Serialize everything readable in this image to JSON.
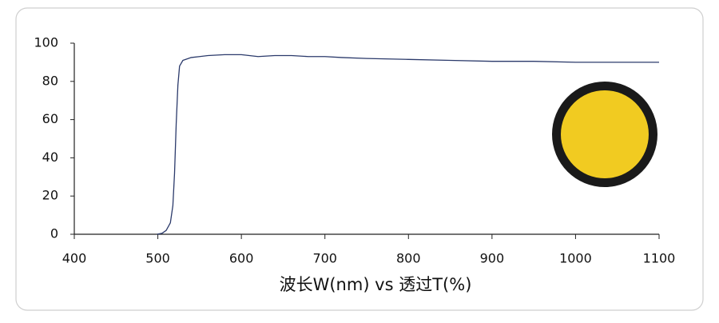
{
  "chart_data": {
    "type": "line",
    "xlabel": "波长W(nm) vs 透过T(%)",
    "x": [
      499,
      505,
      510,
      515,
      518,
      520,
      522,
      524,
      526,
      530,
      540,
      550,
      560,
      580,
      600,
      620,
      640,
      660,
      680,
      700,
      720,
      750,
      800,
      850,
      900,
      950,
      1000,
      1050,
      1100
    ],
    "series": [
      {
        "color": "#2b3a6b",
        "values": [
          0,
          0.5,
          2,
          6,
          15,
          32,
          58,
          78,
          88,
          91,
          92.5,
          93,
          93.5,
          94,
          94,
          93,
          93.5,
          93.5,
          93,
          93,
          92.5,
          92,
          91.5,
          91,
          90.5,
          90.5,
          90,
          90,
          90
        ]
      }
    ],
    "xlim": [
      400,
      1100
    ],
    "xticks": [
      400,
      500,
      600,
      700,
      800,
      900,
      1000,
      1100
    ],
    "ylim": [
      0,
      100
    ],
    "yticks": [
      0,
      20,
      40,
      60,
      80,
      100
    ]
  }
}
